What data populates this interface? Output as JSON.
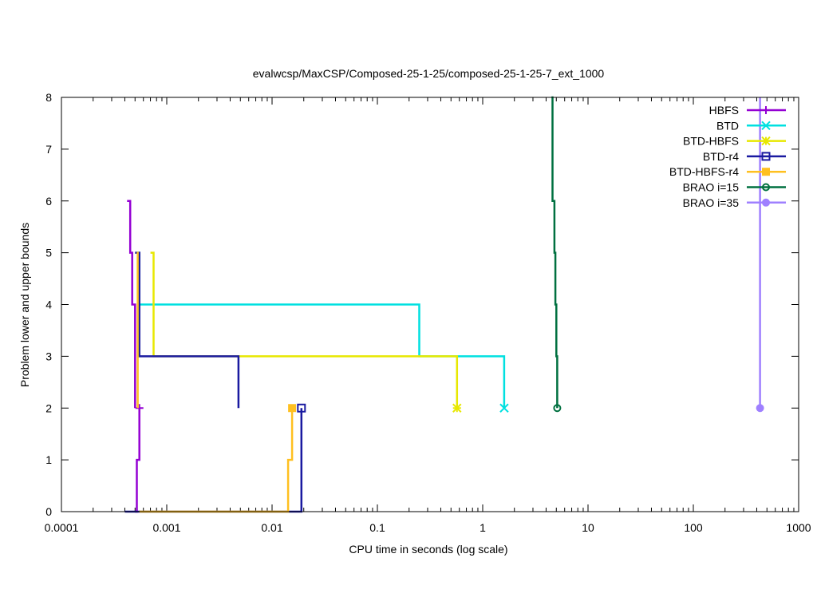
{
  "chart_data": {
    "type": "line",
    "title": "evalwcsp/MaxCSP/Composed-25-1-25/composed-25-1-25-7_ext_1000",
    "xlabel": "CPU time in seconds (log scale)",
    "ylabel": "Problem lower and upper bounds",
    "x_scale": "log",
    "xlim": [
      0.0001,
      1000
    ],
    "ylim": [
      0,
      8
    ],
    "x_ticks": [
      0.0001,
      0.001,
      0.01,
      0.1,
      1,
      10,
      100,
      1000
    ],
    "x_tick_labels": [
      "0.0001",
      "0.001",
      "0.01",
      "0.1",
      "1",
      "10",
      "100",
      "1000"
    ],
    "y_ticks": [
      0,
      1,
      2,
      3,
      4,
      5,
      6,
      7,
      8
    ],
    "y_tick_labels": [
      "0",
      "1",
      "2",
      "3",
      "4",
      "5",
      "6",
      "7",
      "8"
    ],
    "grid": false,
    "legend_position": "top-right",
    "series": [
      {
        "name": "HBFS",
        "color": "#9400d3",
        "marker": "plus",
        "upper": [
          [
            0.00042,
            6
          ],
          [
            0.00045,
            5
          ],
          [
            0.00047,
            4
          ],
          [
            0.0005,
            2
          ]
        ],
        "lower": [
          [
            0.0005,
            0
          ],
          [
            0.00052,
            1
          ],
          [
            0.00055,
            2
          ]
        ],
        "final": [
          0.00055,
          2
        ]
      },
      {
        "name": "BTD",
        "color": "#00e0e0",
        "marker": "x",
        "upper": [
          [
            0.00052,
            5
          ],
          [
            0.00055,
            4
          ],
          [
            0.25,
            3
          ],
          [
            1.6,
            2
          ]
        ],
        "lower": [],
        "final": [
          1.6,
          2
        ]
      },
      {
        "name": "BTD-HBFS",
        "color": "#e8e800",
        "marker": "star",
        "upper": [
          [
            0.0007,
            5
          ],
          [
            0.00075,
            3
          ],
          [
            0.57,
            2
          ]
        ],
        "lower": [],
        "final": [
          0.57,
          2
        ]
      },
      {
        "name": "BTD-r4",
        "color": "#1a1aa0",
        "marker": "box",
        "upper": [
          [
            0.0005,
            5
          ],
          [
            0.00055,
            3
          ],
          [
            0.0048,
            2
          ]
        ],
        "lower": [
          [
            0.0004,
            0
          ],
          [
            0.019,
            2
          ]
        ],
        "final": [
          0.019,
          2
        ]
      },
      {
        "name": "BTD-HBFS-r4",
        "color": "#ffc020",
        "marker": "filled-box",
        "upper": [
          [
            0.00052,
            5
          ],
          [
            0.00053,
            2
          ]
        ],
        "lower": [
          [
            0.00055,
            0
          ],
          [
            0.0142,
            1
          ],
          [
            0.0155,
            2
          ]
        ],
        "final": [
          0.0155,
          2
        ]
      },
      {
        "name": "BRAO i=15",
        "color": "#007040",
        "marker": "circle",
        "upper": [
          [
            4.5,
            8
          ],
          [
            4.6,
            6
          ],
          [
            4.8,
            5
          ],
          [
            4.9,
            4
          ],
          [
            5.0,
            3
          ],
          [
            5.1,
            2
          ]
        ],
        "lower": [],
        "final": [
          5.1,
          2
        ]
      },
      {
        "name": "BRAO i=35",
        "color": "#9f80ff",
        "marker": "filled-circle",
        "upper": [
          [
            430,
            8
          ],
          [
            430,
            2
          ]
        ],
        "lower": [],
        "final": [
          430,
          2
        ]
      }
    ]
  }
}
